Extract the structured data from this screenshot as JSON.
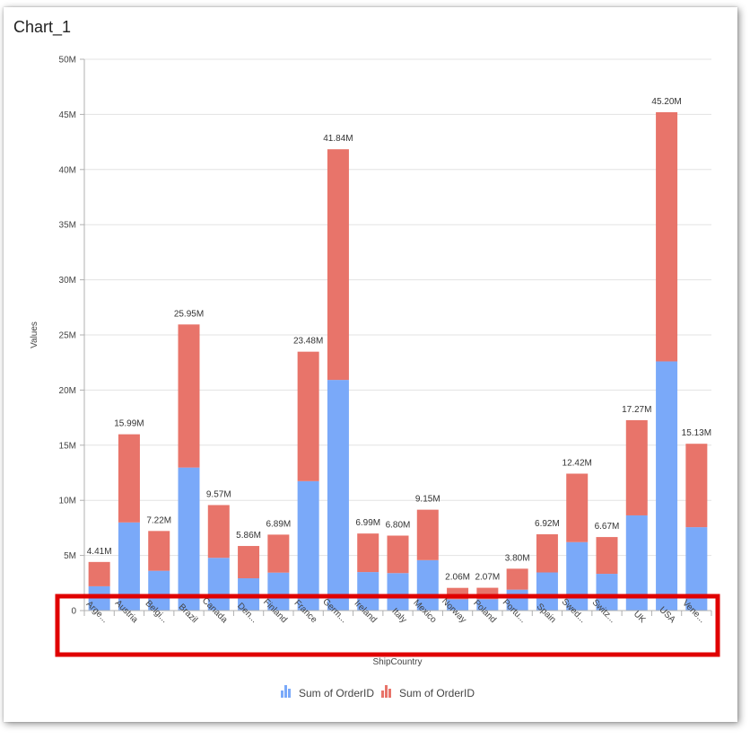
{
  "chart_data": {
    "type": "bar",
    "stacked": true,
    "title": "Chart_1",
    "xlabel": "ShipCountry",
    "ylabel": "Values",
    "ylim": [
      0,
      50000000
    ],
    "yticks": [
      "0",
      "5M",
      "10M",
      "15M",
      "20M",
      "25M",
      "30M",
      "35M",
      "40M",
      "45M",
      "50M"
    ],
    "grid": true,
    "legend_position": "bottom",
    "categories": [
      "Arge...",
      "Austria",
      "Belgi...",
      "Brazil",
      "Canada",
      "Den...",
      "Finland",
      "France",
      "Germ...",
      "Ireland",
      "Italy",
      "Mexico",
      "Norway",
      "Poland",
      "Portu...",
      "Spain",
      "Swed...",
      "Switz...",
      "UK",
      "USA",
      "Vene..."
    ],
    "series": [
      {
        "name": "Sum of OrderID",
        "color": "#7aa9f9",
        "values": [
          2205000,
          7995000,
          3610000,
          12975000,
          4785000,
          2930000,
          3445000,
          11740000,
          20920000,
          3495000,
          3400000,
          4575000,
          1030000,
          1035000,
          1900000,
          3460000,
          6210000,
          3335000,
          8635000,
          22600000,
          7565000
        ]
      },
      {
        "name": "Sum of OrderID",
        "color": "#e8746a",
        "values": [
          2205000,
          7995000,
          3610000,
          12975000,
          4785000,
          2930000,
          3445000,
          11740000,
          20920000,
          3495000,
          3400000,
          4575000,
          1030000,
          1035000,
          1900000,
          3460000,
          6210000,
          3335000,
          8635000,
          22600000,
          7565000
        ]
      }
    ],
    "totals": [
      "4.41M",
      "15.99M",
      "7.22M",
      "25.95M",
      "9.57M",
      "5.86M",
      "6.89M",
      "23.48M",
      "41.84M",
      "6.99M",
      "6.80M",
      "9.15M",
      "2.06M",
      "2.07M",
      "3.80M",
      "6.92M",
      "12.42M",
      "6.67M",
      "17.27M",
      "45.20M",
      "15.13M"
    ],
    "highlight_box_color": "#e00000"
  }
}
